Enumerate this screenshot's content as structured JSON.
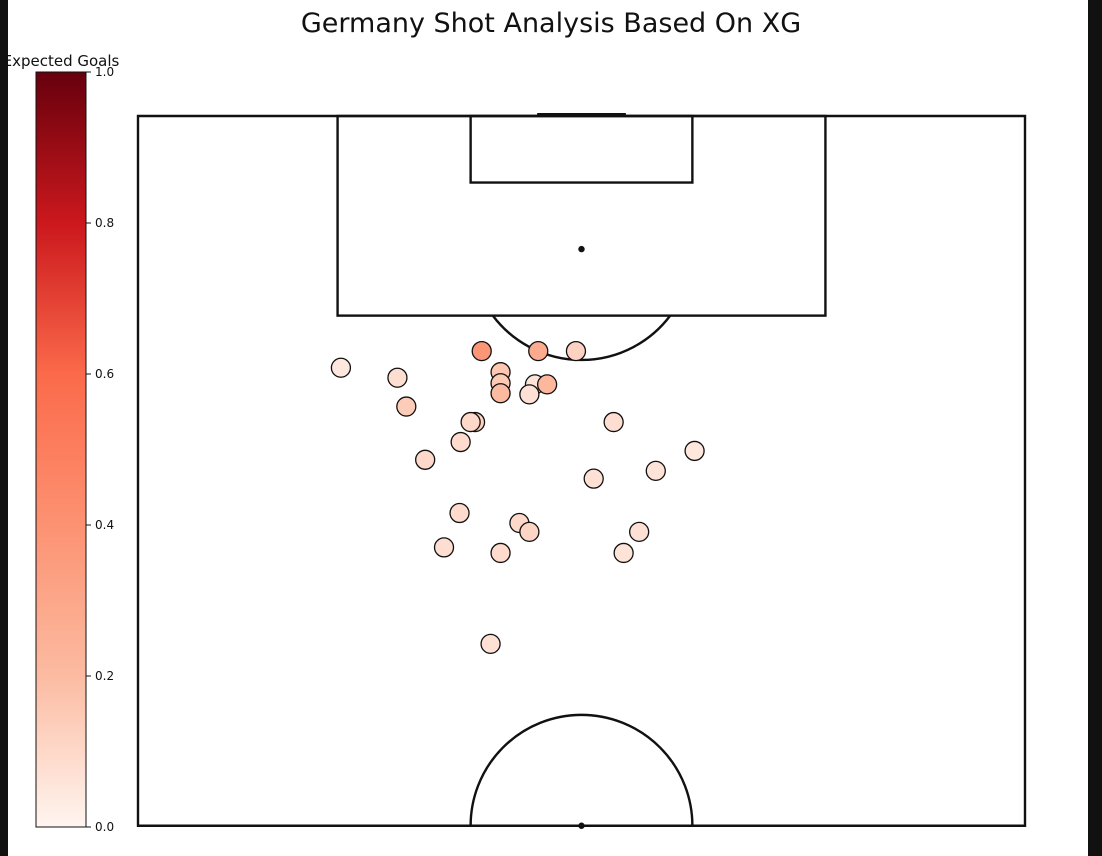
{
  "title": "Germany Shot Analysis Based On XG",
  "chart_data": {
    "type": "scatter",
    "title": "Germany Shot Analysis Based On XG",
    "xlabel": "",
    "ylabel": "",
    "grid": false,
    "pitch": "vertical half pitch, goal at top",
    "xlim": [
      0,
      80
    ],
    "ylim": [
      60,
      124
    ],
    "colorbar": {
      "label": "Expected Goals",
      "colormap": "Reds",
      "range": [
        0,
        1
      ],
      "ticks": [
        "0.0",
        "0.2",
        "0.4",
        "0.6",
        "0.8",
        "1.0"
      ],
      "colors": [
        "#fff5f0",
        "#fcbba1",
        "#fc9272",
        "#fb6a4a",
        "#cb181d",
        "#67000d"
      ]
    },
    "points": [
      {
        "x": 31.0,
        "y": 102.8,
        "xg": 0.38
      },
      {
        "x": 36.1,
        "y": 102.8,
        "xg": 0.28
      },
      {
        "x": 39.5,
        "y": 102.8,
        "xg": 0.12
      },
      {
        "x": 18.3,
        "y": 101.3,
        "xg": 0.05
      },
      {
        "x": 23.4,
        "y": 100.4,
        "xg": 0.08
      },
      {
        "x": 32.7,
        "y": 100.9,
        "xg": 0.16
      },
      {
        "x": 32.7,
        "y": 99.9,
        "xg": 0.15
      },
      {
        "x": 35.8,
        "y": 99.8,
        "xg": 0.06
      },
      {
        "x": 36.9,
        "y": 99.8,
        "xg": 0.22
      },
      {
        "x": 32.7,
        "y": 99.0,
        "xg": 0.2
      },
      {
        "x": 35.3,
        "y": 98.9,
        "xg": 0.07
      },
      {
        "x": 24.2,
        "y": 97.8,
        "xg": 0.14
      },
      {
        "x": 30.4,
        "y": 96.4,
        "xg": 0.12
      },
      {
        "x": 30.0,
        "y": 96.4,
        "xg": 0.1
      },
      {
        "x": 42.9,
        "y": 96.4,
        "xg": 0.08
      },
      {
        "x": 29.1,
        "y": 94.6,
        "xg": 0.09
      },
      {
        "x": 50.2,
        "y": 93.8,
        "xg": 0.05
      },
      {
        "x": 25.9,
        "y": 93.0,
        "xg": 0.1
      },
      {
        "x": 46.7,
        "y": 92.0,
        "xg": 0.06
      },
      {
        "x": 41.1,
        "y": 91.3,
        "xg": 0.07
      },
      {
        "x": 29.0,
        "y": 88.2,
        "xg": 0.09
      },
      {
        "x": 34.4,
        "y": 87.3,
        "xg": 0.1
      },
      {
        "x": 35.3,
        "y": 86.5,
        "xg": 0.11
      },
      {
        "x": 45.2,
        "y": 86.5,
        "xg": 0.07
      },
      {
        "x": 27.6,
        "y": 85.1,
        "xg": 0.08
      },
      {
        "x": 32.7,
        "y": 84.6,
        "xg": 0.09
      },
      {
        "x": 43.8,
        "y": 84.6,
        "xg": 0.06
      },
      {
        "x": 31.8,
        "y": 76.4,
        "xg": 0.07
      }
    ]
  }
}
